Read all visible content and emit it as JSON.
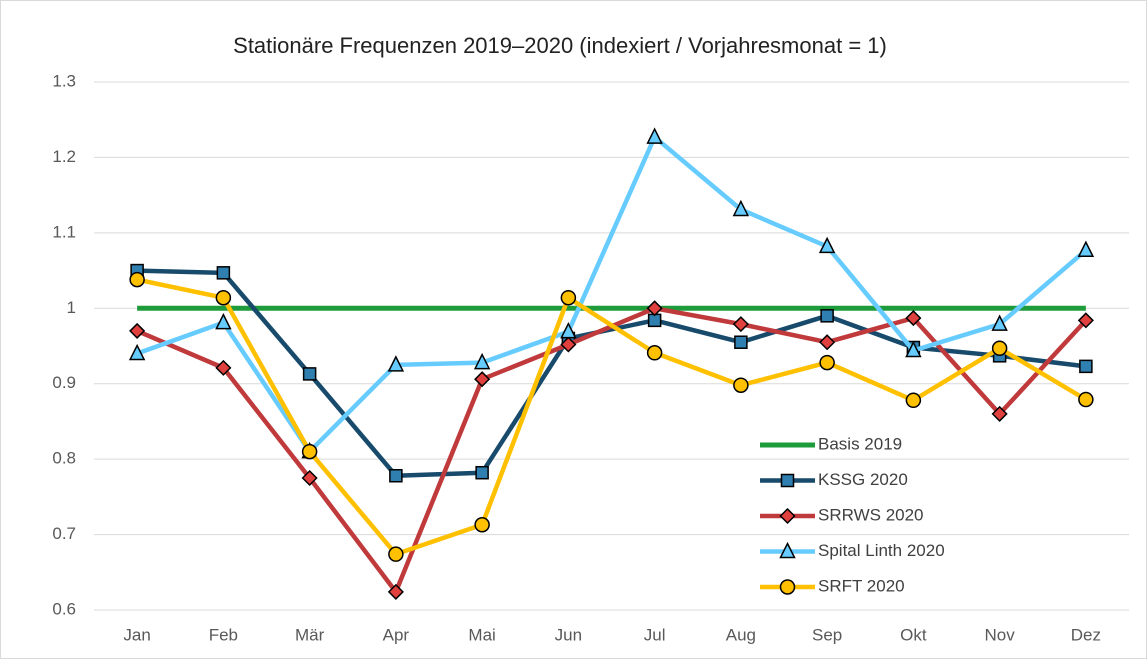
{
  "chart_data": {
    "type": "line",
    "title": "Stationäre Frequenzen 2019–2020 (indexiert / Vorjahresmonat = 1)",
    "categories": [
      "Jan",
      "Feb",
      "Mär",
      "Apr",
      "Mai",
      "Jun",
      "Jul",
      "Aug",
      "Sep",
      "Okt",
      "Nov",
      "Dez"
    ],
    "series": [
      {
        "name": "Basis 2019",
        "color": "#1e9b3a",
        "marker": "none",
        "values": [
          1,
          1,
          1,
          1,
          1,
          1,
          1,
          1,
          1,
          1,
          1,
          1
        ]
      },
      {
        "name": "KSSG 2020",
        "color": "#174a6b",
        "marker_color": "#2f7fb0",
        "marker": "square",
        "values": [
          1.05,
          1.047,
          0.913,
          0.778,
          0.782,
          0.96,
          0.984,
          0.955,
          0.99,
          0.948,
          0.937,
          0.923
        ]
      },
      {
        "name": "SRRWS 2020",
        "color": "#c0393b",
        "marker_color": "#e0403e",
        "marker": "diamond",
        "values": [
          0.97,
          0.921,
          0.775,
          0.624,
          0.906,
          0.952,
          1.0,
          0.979,
          0.955,
          0.987,
          0.86,
          0.984
        ]
      },
      {
        "name": "Spital Linth 2020",
        "color": "#66ccff",
        "marker_color": "#66ccff",
        "marker": "triangle",
        "values": [
          0.94,
          0.981,
          0.81,
          0.925,
          0.928,
          0.969,
          1.227,
          1.131,
          1.082,
          0.944,
          0.979,
          1.077
        ]
      },
      {
        "name": "SRFT 2020",
        "color": "#ffc000",
        "marker_color": "#ffc000",
        "marker": "circle",
        "values": [
          1.038,
          1.014,
          0.81,
          0.674,
          0.713,
          1.014,
          0.941,
          0.898,
          0.928,
          0.878,
          0.947,
          0.879
        ]
      }
    ],
    "ylim": [
      0.6,
      1.3
    ],
    "yticks": [
      0.6,
      0.7,
      0.8,
      0.9,
      1,
      1.1,
      1.2,
      1.3
    ],
    "grid": true,
    "legend": "lower right"
  }
}
